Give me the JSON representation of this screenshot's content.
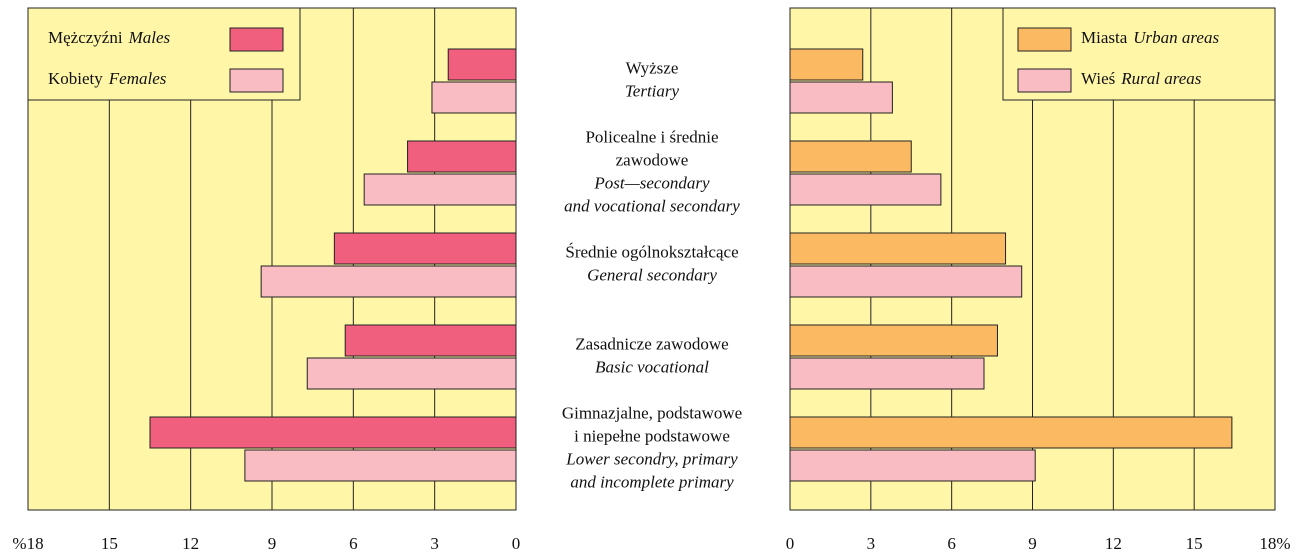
{
  "chart_data": [
    {
      "type": "barh",
      "categories": [
        {
          "pl": [
            "Wyższe"
          ],
          "en": [
            "Tertiary"
          ]
        },
        {
          "pl": [
            "Policealne i średnie",
            "zawodowe"
          ],
          "en": [
            "Post—secondary",
            "and vocational secondary"
          ]
        },
        {
          "pl": [
            "Średnie ogólnokształcące"
          ],
          "en": [
            "General secondary"
          ]
        },
        {
          "pl": [
            "Zasadnicze zawodowe"
          ],
          "en": [
            "Basic vocational"
          ]
        },
        {
          "pl": [
            "Gimnazjalne, podstawowe",
            "i niepełne podstawowe"
          ],
          "en": [
            "Lower secondry, primary",
            "and incomplete primary"
          ]
        }
      ],
      "series": [
        {
          "name": "Mężczyźni",
          "name_en": "Males",
          "color": "#f0607e",
          "values": [
            2.5,
            4.0,
            6.7,
            6.3,
            13.5
          ]
        },
        {
          "name": "Kobiety",
          "name_en": "Females",
          "color": "#f8bcc2",
          "values": [
            3.1,
            5.6,
            9.4,
            7.7,
            10.0
          ]
        }
      ],
      "xlim": [
        0,
        18
      ],
      "x_reversed": true,
      "xticks": [
        0,
        3,
        6,
        9,
        12,
        15,
        {
          "value": 18,
          "label": "%18"
        }
      ],
      "grid": true,
      "legend": "upper left",
      "background": "#fff6a8"
    },
    {
      "type": "barh",
      "series": [
        {
          "name": "Miasta",
          "name_en": "Urban areas",
          "color": "#fbb961",
          "values": [
            2.7,
            4.5,
            8.0,
            7.7,
            16.4
          ]
        },
        {
          "name": "Wieś",
          "name_en": "Rural areas",
          "color": "#f8bcc2",
          "values": [
            3.8,
            5.6,
            8.6,
            7.2,
            9.1
          ]
        }
      ],
      "xlim": [
        0,
        18
      ],
      "x_reversed": false,
      "xticks": [
        0,
        3,
        6,
        9,
        12,
        15,
        {
          "value": 18,
          "label": "18%"
        }
      ],
      "grid": true,
      "legend": "upper right",
      "background": "#fff6a8"
    }
  ]
}
